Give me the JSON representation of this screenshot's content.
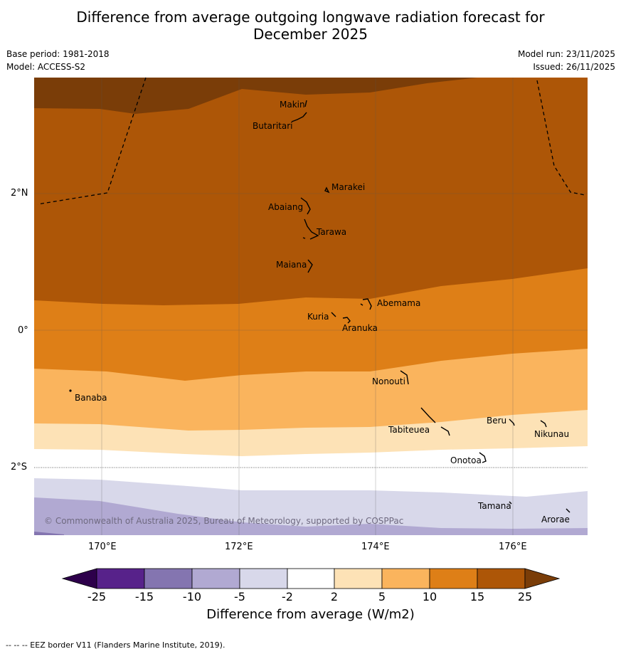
{
  "header": {
    "title_line1": "Difference from average outgoing longwave radiation forecast for",
    "title_line2": "December 2025",
    "base_period": "Base period: 1981-2018",
    "model": "Model: ACCESS-S2",
    "model_run": "Model run: 23/11/2025",
    "issued": "Issued: 26/11/2025"
  },
  "map": {
    "lon_labels": [
      "170°E",
      "172°E",
      "174°E",
      "176°E"
    ],
    "lat_labels": [
      "2°N",
      "0°",
      "2°S"
    ],
    "copyright": "© Commonwealth of Australia 2025, Bureau of Meteorology, supported by COSPPac",
    "places": [
      {
        "name": "Makin"
      },
      {
        "name": "Butaritari"
      },
      {
        "name": "Marakei"
      },
      {
        "name": "Abaiang"
      },
      {
        "name": "Tarawa"
      },
      {
        "name": "Maiana"
      },
      {
        "name": "Abemama"
      },
      {
        "name": "Kuria"
      },
      {
        "name": "Aranuka"
      },
      {
        "name": "Banaba"
      },
      {
        "name": "Nonouti"
      },
      {
        "name": "Tabiteuea"
      },
      {
        "name": "Beru"
      },
      {
        "name": "Nikunau"
      },
      {
        "name": "Onotoa"
      },
      {
        "name": "Tamana"
      },
      {
        "name": "Arorae"
      }
    ],
    "colors": {
      "c25": "#7a3d08",
      "c15_25": "#ad5607",
      "c10_15": "#de7f17",
      "c5_10": "#fab45d",
      "c2_5": "#fde2b6",
      "cn2_2": "#ffffff",
      "cn5_n2": "#d8d8ea",
      "cn10_n5": "#b1a9d2",
      "cn15_n10": "#8475b0",
      "cn25_n15": "#57228a",
      "cn25": "#2d004b"
    }
  },
  "legend": {
    "ticks": [
      "-25",
      "-15",
      "-10",
      "-5",
      "-2",
      "2",
      "5",
      "10",
      "15",
      "25"
    ],
    "label": "Difference from average (W/m2)"
  },
  "footnote": "--  --  -- EEZ border V11 (Flanders Marine Institute, 2019)."
}
